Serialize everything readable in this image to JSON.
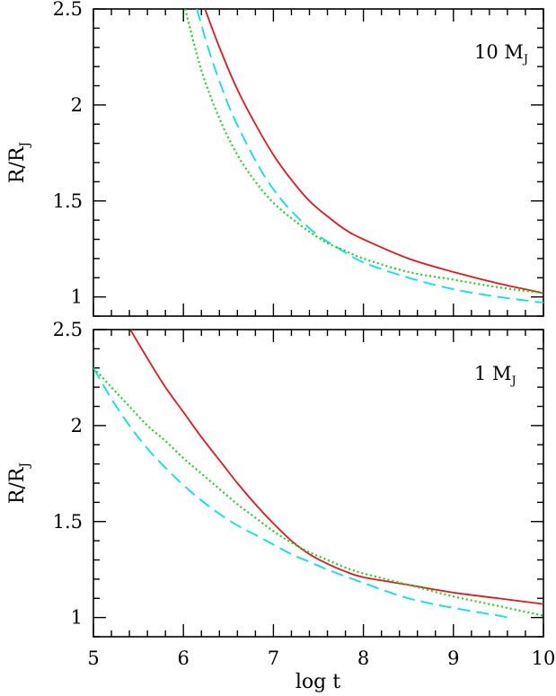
{
  "x_axis_label": "log t",
  "chart_data": [
    {
      "type": "line",
      "panel": "top",
      "annotation": {
        "text": "10 M",
        "sub": "J"
      },
      "ylabel": {
        "text": "R/R",
        "sub": "J"
      },
      "xlim": [
        5,
        10
      ],
      "ylim": [
        0.9,
        2.5
      ],
      "xticks": [
        5,
        6,
        7,
        8,
        9,
        10
      ],
      "yticks": [
        1,
        1.5,
        2,
        2.5
      ],
      "ytick_labels": [
        "1",
        "1.5",
        "2",
        "2.5"
      ],
      "xtick_labels_shown": false,
      "grid": false,
      "series": [
        {
          "style": "solid",
          "color": "#e4171b",
          "x": [
            6.24,
            6.4,
            6.6,
            6.8,
            7.0,
            7.2,
            7.4,
            7.6,
            7.8,
            8.0,
            8.5,
            9.0,
            9.5,
            10.0
          ],
          "y": [
            2.5,
            2.3,
            2.08,
            1.9,
            1.74,
            1.61,
            1.5,
            1.42,
            1.35,
            1.3,
            1.2,
            1.13,
            1.07,
            1.02
          ]
        },
        {
          "style": "dashed",
          "color": "#00e5e5",
          "x": [
            6.15,
            6.3,
            6.5,
            6.7,
            6.9,
            7.1,
            7.3,
            7.5,
            7.7,
            8.0,
            8.5,
            9.0,
            9.5,
            10.0
          ],
          "y": [
            2.5,
            2.26,
            2.0,
            1.8,
            1.63,
            1.5,
            1.4,
            1.32,
            1.26,
            1.18,
            1.1,
            1.04,
            1.0,
            0.97
          ]
        },
        {
          "style": "dotted",
          "color": "#1ed41e",
          "x": [
            6.02,
            6.2,
            6.4,
            6.6,
            6.8,
            7.0,
            7.2,
            7.4,
            7.6,
            7.8,
            8.0,
            8.5,
            9.0,
            9.5,
            10.0
          ],
          "y": [
            2.5,
            2.18,
            1.93,
            1.74,
            1.6,
            1.49,
            1.41,
            1.34,
            1.28,
            1.24,
            1.2,
            1.13,
            1.09,
            1.05,
            1.02
          ]
        }
      ]
    },
    {
      "type": "line",
      "panel": "bottom",
      "annotation": {
        "text": "1 M",
        "sub": "J"
      },
      "ylabel": {
        "text": "R/R",
        "sub": "J"
      },
      "xlim": [
        5,
        10
      ],
      "ylim": [
        0.9,
        2.5
      ],
      "xticks": [
        5,
        6,
        7,
        8,
        9,
        10
      ],
      "yticks": [
        1,
        1.5,
        2,
        2.5
      ],
      "ytick_labels": [
        "1",
        "1.5",
        "2",
        "2.5"
      ],
      "xtick_labels": [
        "5",
        "6",
        "7",
        "8",
        "9",
        "10"
      ],
      "grid": false,
      "series": [
        {
          "style": "solid",
          "color": "#e4171b",
          "x": [
            5.41,
            5.6,
            5.8,
            6.0,
            6.2,
            6.4,
            6.6,
            6.8,
            7.0,
            7.2,
            7.4,
            7.6,
            7.8,
            8.0,
            8.5,
            9.0,
            9.5,
            10.0
          ],
          "y": [
            2.5,
            2.35,
            2.2,
            2.07,
            1.94,
            1.82,
            1.7,
            1.59,
            1.49,
            1.4,
            1.33,
            1.28,
            1.24,
            1.21,
            1.17,
            1.13,
            1.1,
            1.07
          ]
        },
        {
          "style": "dashed",
          "color": "#00e5e5",
          "x": [
            5.0,
            5.2,
            5.4,
            5.6,
            5.8,
            6.0,
            6.2,
            6.4,
            6.6,
            6.8,
            7.0,
            7.2,
            7.4,
            7.6,
            8.0,
            8.5,
            9.0,
            9.5,
            9.6
          ],
          "y": [
            2.3,
            2.14,
            2.0,
            1.88,
            1.78,
            1.69,
            1.61,
            1.54,
            1.48,
            1.43,
            1.38,
            1.33,
            1.29,
            1.25,
            1.18,
            1.1,
            1.05,
            1.01,
            1.0
          ]
        },
        {
          "style": "dotted",
          "color": "#1ed41e",
          "x": [
            5.0,
            5.2,
            5.4,
            5.6,
            5.8,
            6.0,
            6.2,
            6.4,
            6.6,
            6.8,
            7.0,
            7.2,
            7.4,
            7.6,
            7.8,
            8.0,
            8.5,
            9.0,
            9.5,
            10.0
          ],
          "y": [
            2.3,
            2.2,
            2.1,
            2.0,
            1.92,
            1.83,
            1.75,
            1.67,
            1.59,
            1.52,
            1.45,
            1.39,
            1.34,
            1.3,
            1.26,
            1.23,
            1.17,
            1.11,
            1.06,
            1.01
          ]
        }
      ]
    }
  ]
}
